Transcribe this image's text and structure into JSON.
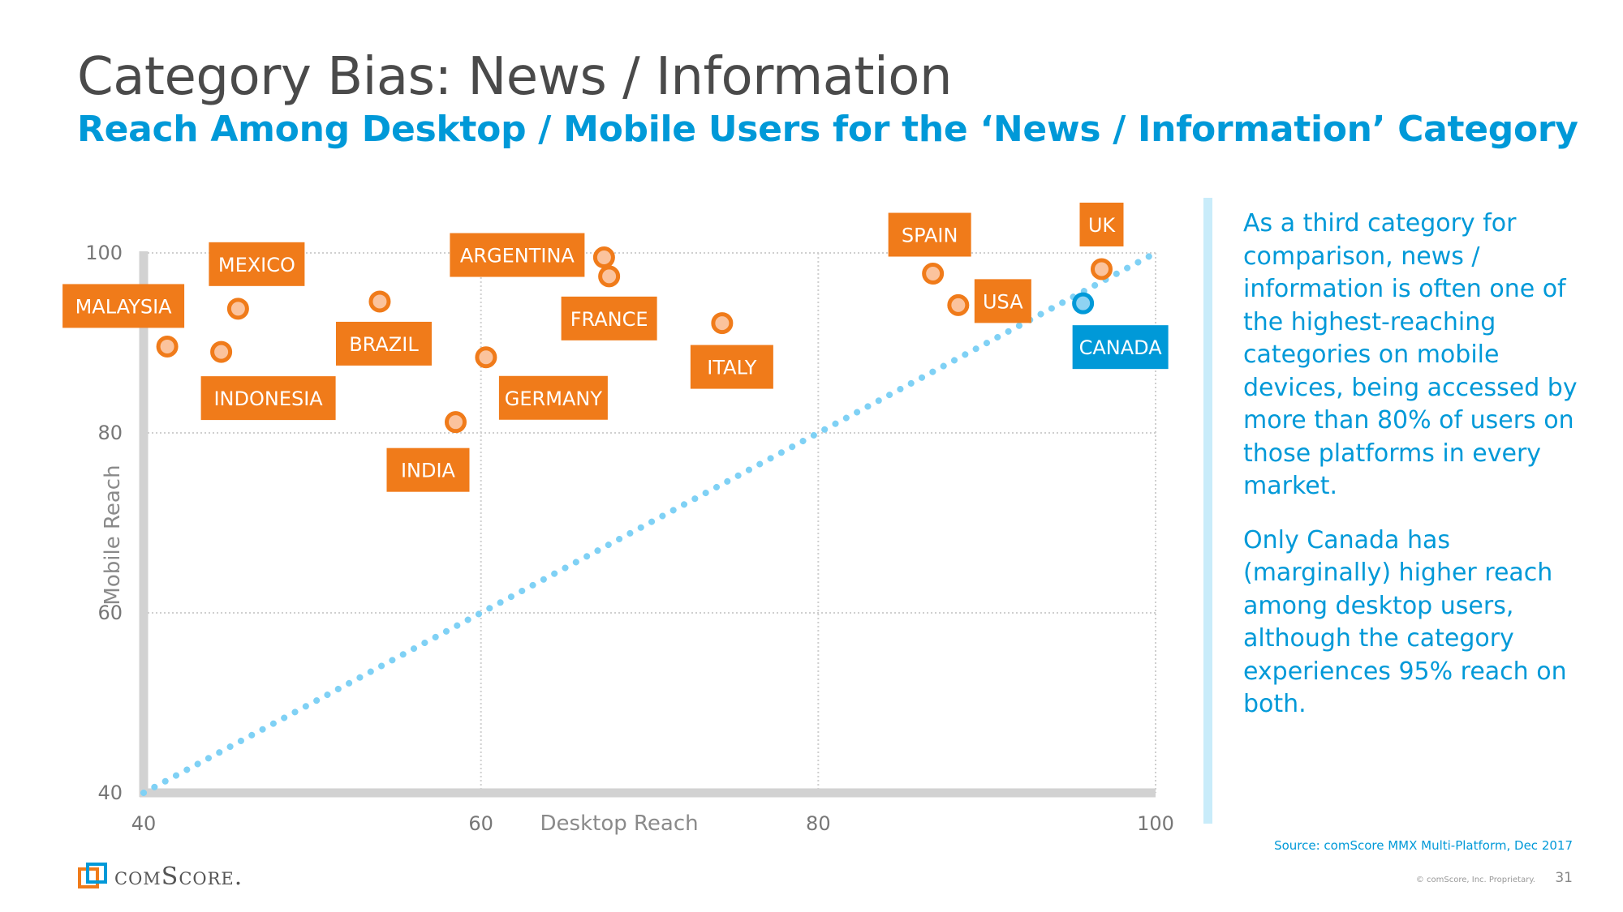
{
  "header": {
    "title": "Category Bias: News / Information",
    "subtitle": "Reach Among Desktop / Mobile Users for the ‘News / Information’ Category"
  },
  "chart_data": {
    "type": "scatter",
    "xlabel": "Desktop Reach",
    "ylabel": "Mobile Reach",
    "xlim": [
      40,
      100
    ],
    "ylim": [
      40,
      100
    ],
    "xticks": [
      40,
      60,
      80,
      100
    ],
    "yticks": [
      40,
      60,
      80,
      100
    ],
    "grid": true,
    "reference_line": {
      "style": "dotted",
      "from": [
        40,
        40
      ],
      "to": [
        100,
        100
      ]
    },
    "points": [
      {
        "name": "MALAYSIA",
        "x": 41.4,
        "y": 89.6,
        "highlight": false
      },
      {
        "name": "MEXICO",
        "x": 45.6,
        "y": 93.8,
        "highlight": false
      },
      {
        "name": "INDONESIA",
        "x": 44.6,
        "y": 89.0,
        "highlight": false
      },
      {
        "name": "BRAZIL",
        "x": 54.0,
        "y": 94.6,
        "highlight": false
      },
      {
        "name": "INDIA",
        "x": 58.5,
        "y": 81.2,
        "highlight": false
      },
      {
        "name": "GERMANY",
        "x": 60.3,
        "y": 88.4,
        "highlight": false
      },
      {
        "name": "ARGENTINA",
        "x": 67.3,
        "y": 99.5,
        "highlight": false
      },
      {
        "name": "FRANCE",
        "x": 67.6,
        "y": 97.4,
        "highlight": false
      },
      {
        "name": "ITALY",
        "x": 74.3,
        "y": 92.2,
        "highlight": false
      },
      {
        "name": "SPAIN",
        "x": 86.8,
        "y": 97.7,
        "highlight": false
      },
      {
        "name": "USA",
        "x": 88.3,
        "y": 94.2,
        "highlight": false
      },
      {
        "name": "UK",
        "x": 96.8,
        "y": 98.2,
        "highlight": false
      },
      {
        "name": "CANADA",
        "x": 95.7,
        "y": 94.4,
        "highlight": true
      }
    ]
  },
  "colors": {
    "accent": "#0099d8",
    "point_orange": "#f07b1a",
    "point_fill": "#fbc39d",
    "highlight_fill": "#8fd3f2",
    "reference_line": "#7fd1f5"
  },
  "sidebar": {
    "paragraph1": "As a third category for comparison, news / information is often one of the highest-reaching categories on mobile devices, being accessed by more than 80% of users on those platforms in every market.",
    "paragraph2": "Only Canada has (marginally) higher reach among desktop users, although the category experiences 95% reach on both."
  },
  "footer": {
    "source": "Source: comScore MMX Multi-Platform, Dec 2017",
    "logo": "comScore.",
    "copyright": "© comScore, Inc. Proprietary.",
    "page_number": "31"
  }
}
